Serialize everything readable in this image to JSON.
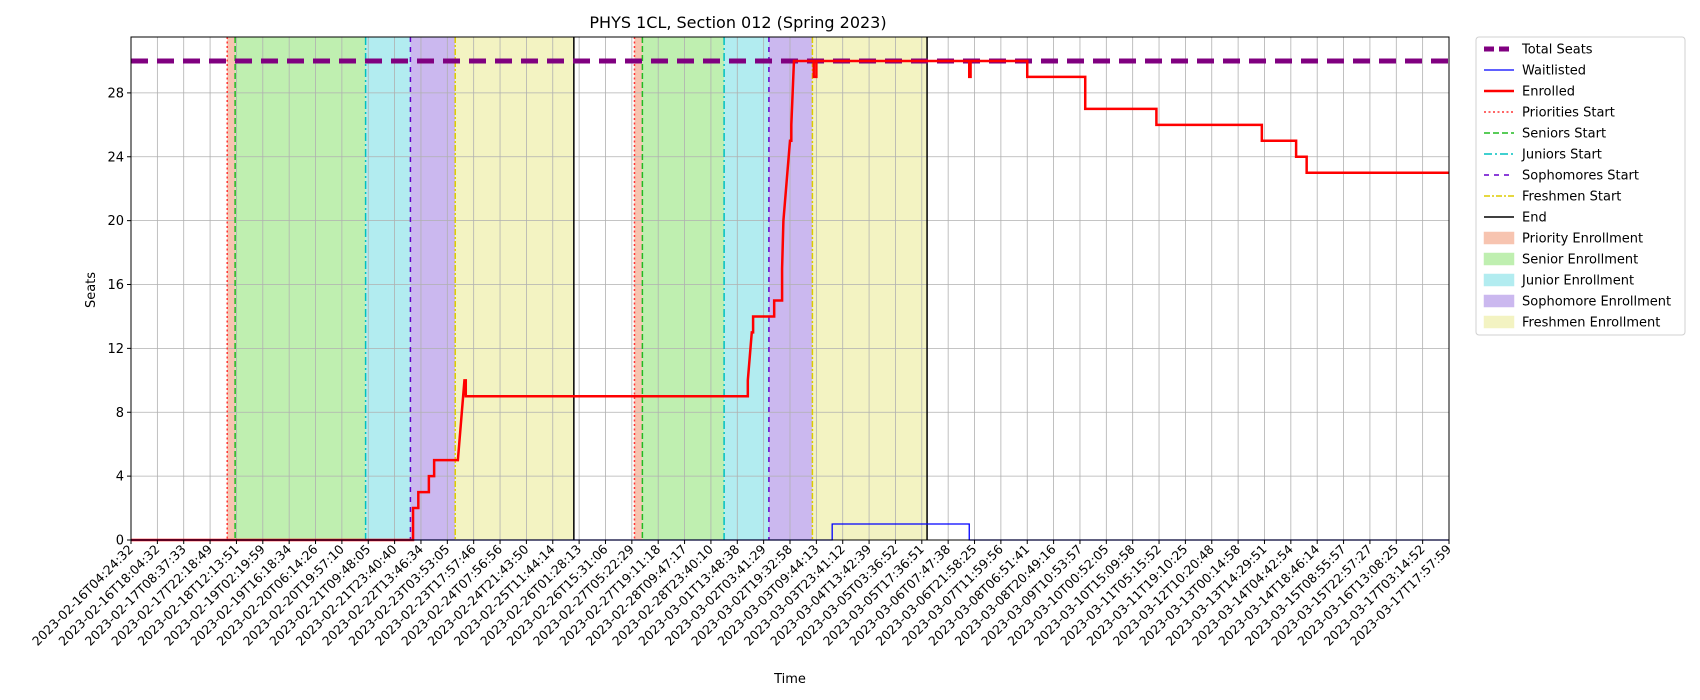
{
  "chart_data": {
    "type": "line",
    "title": "PHYS 1CL, Section 012 (Spring 2023)",
    "xlabel": "Time",
    "ylabel": "Seats",
    "ylim": [
      0,
      31.5
    ],
    "yticks": [
      0,
      4,
      8,
      12,
      16,
      20,
      24,
      28
    ],
    "grid": true,
    "legend_position": "outside-right-top",
    "x_tick_labels": [
      "2023-02-16T04:24:32",
      "2023-02-16T18:04:32",
      "2023-02-17T08:37:33",
      "2023-02-17T22:18:49",
      "2023-02-18T12:13:51",
      "2023-02-19T02:19:59",
      "2023-02-19T16:18:34",
      "2023-02-20T06:14:26",
      "2023-02-20T19:57:10",
      "2023-02-21T09:48:05",
      "2023-02-21T23:40:40",
      "2023-02-22T13:46:34",
      "2023-02-23T03:53:05",
      "2023-02-23T17:57:46",
      "2023-02-24T07:56:56",
      "2023-02-24T21:43:50",
      "2023-02-25T11:44:14",
      "2023-02-26T01:28:13",
      "2023-02-26T15:31:06",
      "2023-02-27T05:22:29",
      "2023-02-27T19:11:18",
      "2023-02-28T09:47:17",
      "2023-02-28T23:40:10",
      "2023-03-01T13:48:38",
      "2023-03-02T03:41:29",
      "2023-03-02T19:32:58",
      "2023-03-03T09:44:13",
      "2023-03-03T23:41:12",
      "2023-03-04T13:42:39",
      "2023-03-05T03:36:52",
      "2023-03-05T17:36:51",
      "2023-03-06T07:47:38",
      "2023-03-06T21:58:25",
      "2023-03-07T11:59:56",
      "2023-03-08T06:51:41",
      "2023-03-08T20:49:16",
      "2023-03-09T10:53:57",
      "2023-03-10T00:52:05",
      "2023-03-10T15:09:58",
      "2023-03-11T05:15:52",
      "2023-03-11T19:10:25",
      "2023-03-12T10:20:48",
      "2023-03-13T00:14:58",
      "2023-03-13T14:29:51",
      "2023-03-14T04:42:54",
      "2023-03-14T18:46:14",
      "2023-03-15T08:55:57",
      "2023-03-15T22:57:27",
      "2023-03-16T13:08:25",
      "2023-03-17T03:14:52",
      "2023-03-17T17:57:59"
    ],
    "x_range_ticks": [
      0,
      50
    ],
    "total_seats": 30,
    "series": [
      {
        "name": "Enrolled",
        "color": "#ff0000",
        "points": [
          [
            0,
            0
          ],
          [
            10.7,
            0
          ],
          [
            10.7,
            2
          ],
          [
            10.9,
            2
          ],
          [
            10.9,
            3
          ],
          [
            11.3,
            3
          ],
          [
            11.3,
            4
          ],
          [
            11.5,
            4
          ],
          [
            11.5,
            5
          ],
          [
            12.4,
            5
          ],
          [
            12.45,
            6
          ],
          [
            12.5,
            7
          ],
          [
            12.55,
            8
          ],
          [
            12.6,
            9
          ],
          [
            12.65,
            10
          ],
          [
            12.7,
            10
          ],
          [
            12.7,
            9
          ],
          [
            23.4,
            9
          ],
          [
            23.4,
            10
          ],
          [
            23.45,
            11
          ],
          [
            23.5,
            12
          ],
          [
            23.55,
            13
          ],
          [
            23.6,
            13
          ],
          [
            23.6,
            14
          ],
          [
            24.4,
            14
          ],
          [
            24.4,
            15
          ],
          [
            24.7,
            15
          ],
          [
            24.7,
            17
          ],
          [
            24.75,
            20
          ],
          [
            24.8,
            21
          ],
          [
            24.85,
            22
          ],
          [
            24.9,
            23
          ],
          [
            24.95,
            24
          ],
          [
            25.0,
            25
          ],
          [
            25.05,
            25
          ],
          [
            25.05,
            26
          ],
          [
            25.1,
            28
          ],
          [
            25.15,
            30
          ],
          [
            25.9,
            30
          ],
          [
            25.9,
            29
          ],
          [
            26.0,
            29
          ],
          [
            26.0,
            30
          ],
          [
            31.8,
            30
          ],
          [
            31.8,
            29
          ],
          [
            31.85,
            29
          ],
          [
            31.85,
            30
          ],
          [
            34.0,
            30
          ],
          [
            34.0,
            29
          ],
          [
            36.2,
            29
          ],
          [
            36.2,
            27
          ],
          [
            38.9,
            27
          ],
          [
            38.9,
            26
          ],
          [
            42.9,
            26
          ],
          [
            42.9,
            25
          ],
          [
            44.2,
            25
          ],
          [
            44.2,
            24
          ],
          [
            44.6,
            24
          ],
          [
            44.6,
            23
          ],
          [
            50,
            23
          ]
        ]
      },
      {
        "name": "Waitlisted",
        "color": "#0000ff",
        "points": [
          [
            0,
            0
          ],
          [
            26.6,
            0
          ],
          [
            26.6,
            1
          ],
          [
            31.8,
            1
          ],
          [
            31.8,
            0
          ],
          [
            50,
            0
          ]
        ]
      }
    ],
    "start_lines": [
      {
        "name": "Priorities Start",
        "x": [
          3.65,
          19.1
        ],
        "color": "#ff3333",
        "dash": "2,2.5"
      },
      {
        "name": "Seniors Start",
        "x": [
          3.95,
          19.4
        ],
        "color": "#22bb22",
        "dash": "6,3"
      },
      {
        "name": "Juniors Start",
        "x": [
          8.9,
          22.5
        ],
        "color": "#00c0c0",
        "dash": "8,3,2,3"
      },
      {
        "name": "Sophomores Start",
        "x": [
          10.6,
          24.2
        ],
        "color": "#6600cc",
        "dash": "5,5"
      },
      {
        "name": "Freshmen Start",
        "x": [
          12.3,
          25.85
        ],
        "color": "#ddcc00",
        "dash": "6,2,2,2"
      },
      {
        "name": "End",
        "x": [
          16.8,
          30.2
        ],
        "color": "#000000",
        "dash": ""
      }
    ],
    "bands": [
      {
        "name": "Priority Enrollment",
        "color": "#f7c4b0",
        "spans": [
          [
            3.65,
            3.95
          ],
          [
            19.1,
            19.4
          ]
        ]
      },
      {
        "name": "Senior Enrollment",
        "color": "#bfefb0",
        "spans": [
          [
            3.95,
            8.9
          ],
          [
            19.4,
            22.5
          ]
        ]
      },
      {
        "name": "Junior Enrollment",
        "color": "#b2ecf0",
        "spans": [
          [
            8.9,
            10.6
          ],
          [
            22.5,
            24.2
          ]
        ]
      },
      {
        "name": "Sophomore Enrollment",
        "color": "#cbb8ef",
        "spans": [
          [
            10.6,
            12.3
          ],
          [
            24.2,
            25.85
          ]
        ]
      },
      {
        "name": "Freshmen Enrollment",
        "color": "#f3f3c2",
        "spans": [
          [
            12.3,
            16.8
          ],
          [
            25.85,
            30.2
          ]
        ]
      }
    ],
    "legend": [
      {
        "label": "Total Seats",
        "kind": "line",
        "color": "#800080",
        "width": 5,
        "dash": "10,5"
      },
      {
        "label": "Waitlisted",
        "kind": "line",
        "color": "#0000ff",
        "width": 1.2,
        "dash": ""
      },
      {
        "label": "Enrolled",
        "kind": "line",
        "color": "#ff0000",
        "width": 2.5,
        "dash": ""
      },
      {
        "label": "Priorities Start",
        "kind": "line",
        "color": "#ff3333",
        "width": 1.5,
        "dash": "2,2.5"
      },
      {
        "label": "Seniors Start",
        "kind": "line",
        "color": "#22bb22",
        "width": 1.5,
        "dash": "6,3"
      },
      {
        "label": "Juniors Start",
        "kind": "line",
        "color": "#00c0c0",
        "width": 1.5,
        "dash": "8,3,2,3"
      },
      {
        "label": "Sophomores Start",
        "kind": "line",
        "color": "#6600cc",
        "width": 1.5,
        "dash": "5,5"
      },
      {
        "label": "Freshmen Start",
        "kind": "line",
        "color": "#ddcc00",
        "width": 1.5,
        "dash": "6,2,2,2"
      },
      {
        "label": "End",
        "kind": "line",
        "color": "#000000",
        "width": 1.5,
        "dash": ""
      },
      {
        "label": "Priority Enrollment",
        "kind": "patch",
        "color": "#f7c4b0"
      },
      {
        "label": "Senior Enrollment",
        "kind": "patch",
        "color": "#bfefb0"
      },
      {
        "label": "Junior Enrollment",
        "kind": "patch",
        "color": "#b2ecf0"
      },
      {
        "label": "Sophomore Enrollment",
        "kind": "patch",
        "color": "#cbb8ef"
      },
      {
        "label": "Freshmen Enrollment",
        "kind": "patch",
        "color": "#f3f3c2"
      }
    ]
  }
}
